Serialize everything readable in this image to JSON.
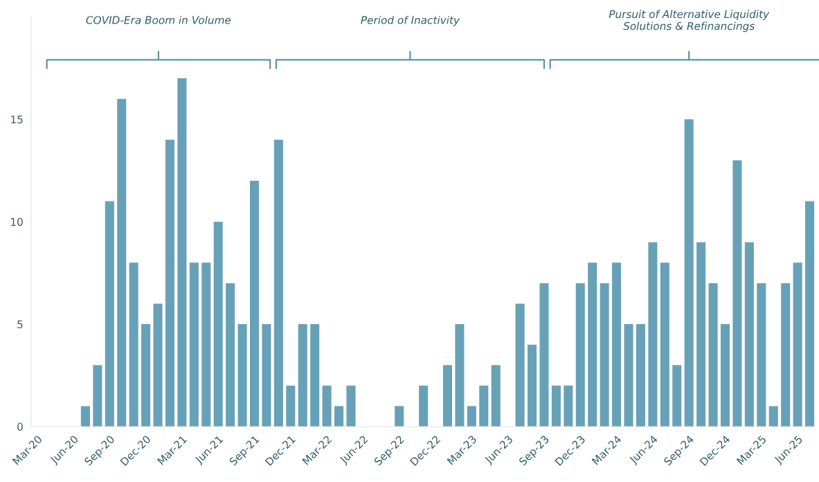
{
  "chart_data": {
    "type": "bar",
    "categories": [
      "Mar-20",
      null,
      null,
      "Jun-20",
      null,
      null,
      "Sep-20",
      null,
      null,
      "Dec-20",
      null,
      null,
      "Mar-21",
      null,
      null,
      "Jun-21",
      null,
      null,
      "Sep-21",
      null,
      null,
      "Dec-21",
      null,
      null,
      "Mar-22",
      null,
      null,
      "Jun-22",
      null,
      null,
      "Sep-22",
      null,
      null,
      "Dec-22",
      null,
      null,
      "Mar-23",
      null,
      null,
      "Jun-23",
      null,
      null,
      "Sep-23",
      null,
      null,
      "Dec-23",
      null,
      null,
      "Mar-24",
      null,
      null,
      "Jun-24",
      null,
      null,
      "Sep-24",
      null,
      null,
      "Dec-24",
      null,
      null,
      "Mar-25",
      null,
      null,
      "Jun-25",
      null
    ],
    "values": [
      0,
      0,
      0,
      0,
      1,
      3,
      11,
      16,
      8,
      5,
      6,
      14,
      17,
      8,
      8,
      10,
      7,
      5,
      12,
      5,
      14,
      2,
      5,
      5,
      2,
      1,
      2,
      0,
      0,
      0,
      1,
      0,
      2,
      0,
      3,
      5,
      1,
      2,
      3,
      0,
      6,
      4,
      7,
      2,
      2,
      7,
      8,
      7,
      8,
      5,
      5,
      9,
      8,
      3,
      15,
      9,
      7,
      5,
      13,
      9,
      7,
      1,
      7,
      8,
      11
    ],
    "color": "#67a1b7",
    "ylim": [
      0,
      20
    ],
    "yticks": [
      0,
      5,
      10,
      15
    ],
    "grid": false,
    "legend": false,
    "annotations": [
      "COVID-Era Boom in Volume",
      "Period of Inactivity",
      "Pursuit of Alternative Liquidity\nSolutions & Refinancings"
    ]
  }
}
